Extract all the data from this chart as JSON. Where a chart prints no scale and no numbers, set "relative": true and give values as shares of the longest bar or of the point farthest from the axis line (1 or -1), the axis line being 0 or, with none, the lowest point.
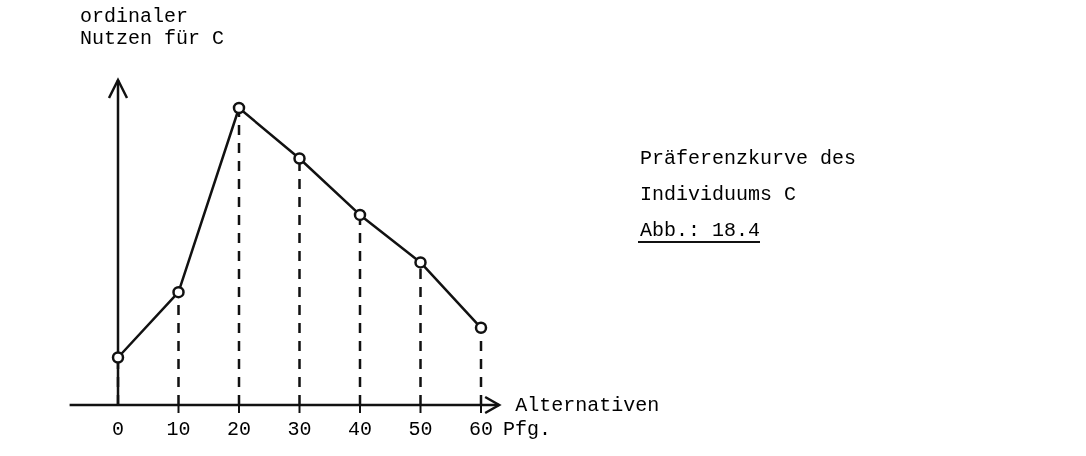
{
  "chart_data": {
    "type": "line",
    "relative": true,
    "title": "Präferenzkurve des Individuums C",
    "ylabel": "ordinaler Nutzen für C",
    "xlabel": "Alternativen",
    "annotations": [
      "Abb.: 18.4",
      "Pfg."
    ],
    "xlim": [
      -8,
      63
    ],
    "xticks": [
      {
        "value": 0,
        "label": "0"
      },
      10,
      20,
      30,
      40,
      50,
      60
    ],
    "line_style": "solid",
    "series": [
      {
        "type": "line",
        "color": "#111111",
        "marker": "none",
        "x": [
          0,
          10,
          20,
          30,
          40,
          50,
          60
        ],
        "values": [
          0.16,
          0.38,
          1,
          0.83,
          0.64,
          0.48,
          0.26
        ]
      },
      {
        "type": "lollipop",
        "color": "#111111",
        "line_style": "dashed",
        "marker": "circle",
        "x": [
          0,
          10,
          20,
          30,
          40,
          50,
          60
        ],
        "values": [
          0.16,
          0.38,
          1,
          0.83,
          0.64,
          0.48,
          0.26
        ]
      }
    ]
  }
}
